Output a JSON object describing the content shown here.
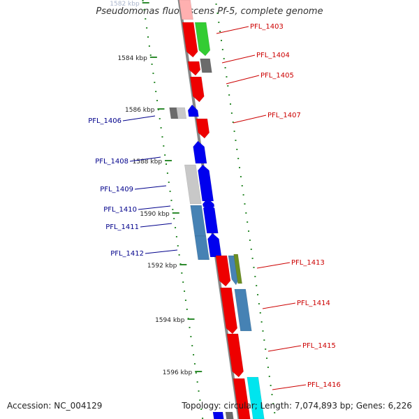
{
  "title": "Pseudomonas fluorescens Pf-5, complete genome",
  "footer": {
    "accession": "Accession: NC_004129",
    "topology": "Topology: circular; Length: 7,074,893 bp; Genes: 6,226"
  },
  "colors": {
    "backbone": "#888888",
    "ruler_dots": "#2e8b2e",
    "label_right": "#cc0000",
    "label_left": "#00008b",
    "red": "#ee0000",
    "green": "#33cc33",
    "blue": "#0000ee",
    "gray": "#6b6b6b",
    "light_gray": "#c8c8c8",
    "steel_blue": "#4682b4",
    "olive": "#6b8e23",
    "cyan": "#00e5ee",
    "pink": "#ffb0b0"
  },
  "ruler_labels": [
    "1582 kbp",
    "1584 kbp",
    "1586 kbp",
    "1588 kbp",
    "1590 kbp",
    "1592 kbp",
    "1594 kbp",
    "1596 kbp"
  ],
  "gene_labels": [
    {
      "id": "PFL_1403",
      "side": "right"
    },
    {
      "id": "PFL_1404",
      "side": "right"
    },
    {
      "id": "PFL_1405",
      "side": "right"
    },
    {
      "id": "PFL_1406",
      "side": "left"
    },
    {
      "id": "PFL_1407",
      "side": "right"
    },
    {
      "id": "PFL_1408",
      "side": "left"
    },
    {
      "id": "PFL_1409",
      "side": "left"
    },
    {
      "id": "PFL_1410",
      "side": "left"
    },
    {
      "id": "PFL_1411",
      "side": "left"
    },
    {
      "id": "PFL_1412",
      "side": "left"
    },
    {
      "id": "PFL_1413",
      "side": "right"
    },
    {
      "id": "PFL_1414",
      "side": "right"
    },
    {
      "id": "PFL_1415",
      "side": "right"
    },
    {
      "id": "PFL_1416",
      "side": "right"
    }
  ]
}
